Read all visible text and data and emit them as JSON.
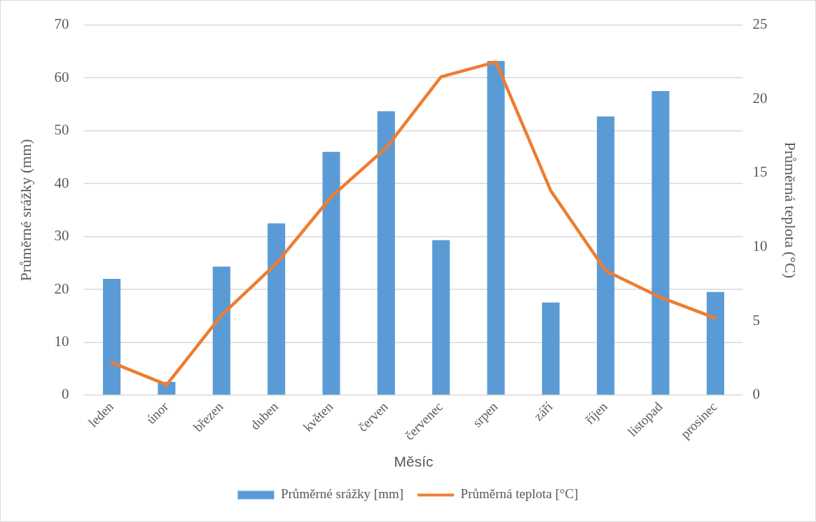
{
  "chart_data": {
    "type": "bar",
    "xlabel": "Měsíc",
    "ylabel": "Průměrné srážky (mm)",
    "y2label": "Průměrná teplota (°C)",
    "categories": [
      "leden",
      "únor",
      "březen",
      "duben",
      "květen",
      "červen",
      "červenec",
      "srpen",
      "září",
      "říjen",
      "listopad",
      "prosinec"
    ],
    "series": [
      {
        "name": "Průměrné srážky [mm]",
        "color": "#5b9bd5",
        "values": [
          22,
          2.5,
          24.3,
          32.5,
          46,
          53.7,
          29.3,
          63.2,
          17.5,
          52.7,
          57.5,
          19.5
        ]
      },
      {
        "name": "Průměrná teplota [°C]",
        "type": "line",
        "axis": "y2",
        "color": "#ed7d31",
        "values": [
          2.2,
          0.7,
          5.4,
          8.9,
          13.4,
          16.7,
          21.5,
          22.5,
          13.8,
          8.4,
          6.6,
          5.2
        ]
      }
    ],
    "ylim": [
      0,
      70
    ],
    "yticks": [
      0,
      10,
      20,
      30,
      40,
      50,
      60,
      70
    ],
    "y2lim": [
      0,
      25
    ],
    "y2ticks": [
      0,
      5,
      10,
      15,
      20,
      25
    ],
    "grid": "y",
    "legend": "bottom",
    "marker": "none",
    "line_style": "solid"
  }
}
